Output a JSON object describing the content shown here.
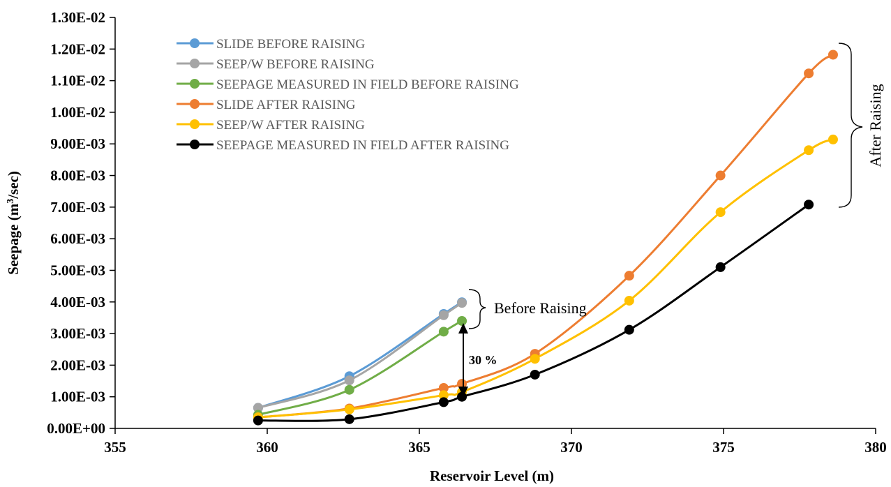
{
  "chart_data": {
    "type": "line",
    "xlabel": "Reservoir Level (m)",
    "ylabel": "Seepage (m³/sec)",
    "ylabel_main": "Seepage (m",
    "ylabel_sup": "3",
    "ylabel_tail": "/sec)",
    "xlim": [
      355,
      380
    ],
    "ylim": [
      0,
      0.013
    ],
    "x_ticks": [
      355,
      360,
      365,
      370,
      375,
      380
    ],
    "x_tick_labels": [
      "355",
      "360",
      "365",
      "370",
      "375",
      "380"
    ],
    "y_ticks": [
      0,
      0.001,
      0.002,
      0.003,
      0.004,
      0.005,
      0.006,
      0.007,
      0.008,
      0.009,
      0.01,
      0.011,
      0.012,
      0.013
    ],
    "y_tick_labels": [
      "0.00E+00",
      "1.00E-03",
      "2.00E-03",
      "3.00E-03",
      "4.00E-03",
      "5.00E-03",
      "6.00E-03",
      "7.00E-03",
      "8.00E-03",
      "9.00E-03",
      "1.00E-02",
      "1.10E-02",
      "1.20E-02",
      "1.30E-02"
    ],
    "grid": false,
    "legend_position": "top-left",
    "series": [
      {
        "name": "SLIDE BEFORE RAISING",
        "color": "#5B9BD5",
        "x": [
          359.7,
          362.7,
          365.8,
          366.4
        ],
        "y": [
          0.00065,
          0.00165,
          0.00362,
          0.00399
        ]
      },
      {
        "name": "SEEP/W BEFORE RAISING",
        "color": "#A5A5A5",
        "x": [
          359.7,
          362.7,
          365.8,
          366.4
        ],
        "y": [
          0.00065,
          0.00152,
          0.00358,
          0.00397
        ]
      },
      {
        "name": "SEEPAGE MEASURED IN FIELD BEFORE RAISING",
        "color": "#70AD47",
        "x": [
          359.7,
          362.7,
          365.8,
          366.4
        ],
        "y": [
          0.00043,
          0.00122,
          0.00306,
          0.0034
        ]
      },
      {
        "name": "SLIDE AFTER RAISING",
        "color": "#ED7D31",
        "x": [
          359.7,
          362.7,
          365.8,
          366.4,
          368.8,
          371.9,
          374.9,
          377.8,
          378.6
        ],
        "y": [
          0.00035,
          0.00063,
          0.00128,
          0.00141,
          0.00236,
          0.00483,
          0.008,
          0.01123,
          0.01182
        ]
      },
      {
        "name": "SEEP/W AFTER RAISING",
        "color": "#FFC000",
        "x": [
          359.7,
          362.7,
          365.8,
          366.4,
          368.8,
          371.9,
          374.9,
          377.8,
          378.6
        ],
        "y": [
          0.00035,
          0.0006,
          0.00105,
          0.00115,
          0.0022,
          0.00404,
          0.00684,
          0.0088,
          0.00914
        ]
      },
      {
        "name": "SEEPAGE MEASURED IN FIELD AFTER RAISING",
        "color": "#000000",
        "x": [
          359.7,
          362.7,
          365.8,
          366.4,
          368.8,
          371.9,
          374.9,
          377.8
        ],
        "y": [
          0.00025,
          0.00029,
          0.00083,
          0.001,
          0.0017,
          0.00312,
          0.0051,
          0.00708
        ]
      }
    ],
    "annotations": {
      "before_raising": "Before Raising",
      "after_raising": "After Raising",
      "percent_label": "30 %"
    }
  }
}
